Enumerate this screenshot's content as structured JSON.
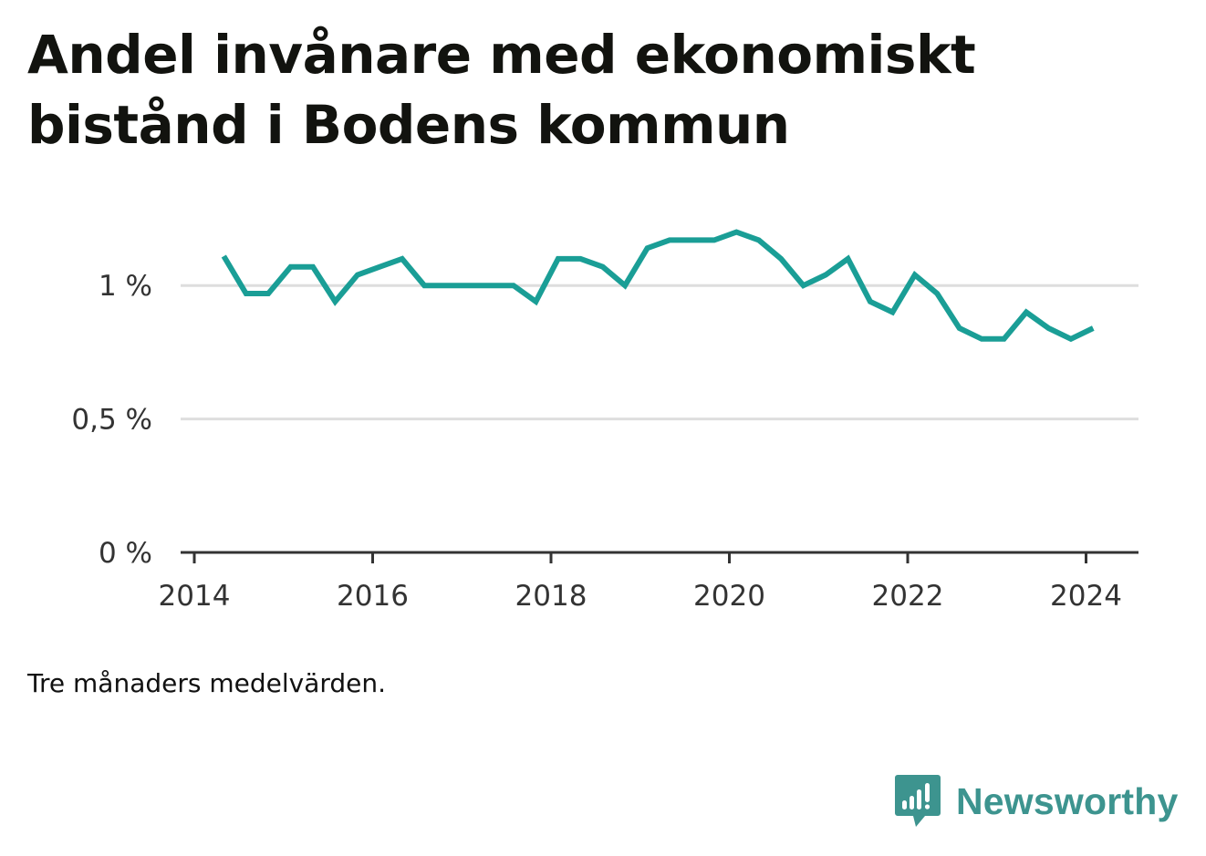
{
  "title": "Andel invånare med ekonomiskt bistånd i Bodens kommun",
  "note": "Tre månaders medelvärden.",
  "brand": {
    "name": "Newsworthy",
    "icon": "bar-chart-speech-bubble-icon",
    "color": "#3d948f"
  },
  "chart_data": {
    "type": "line",
    "title": "Andel invånare med ekonomiskt bistånd i Bodens kommun",
    "xlabel": "",
    "ylabel": "",
    "x_ticks": [
      "2014",
      "2016",
      "2018",
      "2020",
      "2022",
      "2024"
    ],
    "y_ticks": [
      "0 %",
      "0,5 %",
      "1 %"
    ],
    "xlim": [
      2014.0,
      2024.6
    ],
    "ylim": [
      0,
      1.25
    ],
    "grid": true,
    "legend": "none",
    "series": [
      {
        "color": "#1a9e96",
        "points": [
          [
            2014.33,
            1.11
          ],
          [
            2014.58,
            0.97
          ],
          [
            2014.83,
            0.97
          ],
          [
            2015.08,
            1.07
          ],
          [
            2015.33,
            1.07
          ],
          [
            2015.58,
            0.94
          ],
          [
            2015.83,
            1.04
          ],
          [
            2016.08,
            1.07
          ],
          [
            2016.33,
            1.1
          ],
          [
            2016.58,
            1.0
          ],
          [
            2016.83,
            1.0
          ],
          [
            2017.08,
            1.0
          ],
          [
            2017.33,
            1.0
          ],
          [
            2017.58,
            1.0
          ],
          [
            2017.83,
            0.94
          ],
          [
            2018.08,
            1.1
          ],
          [
            2018.33,
            1.1
          ],
          [
            2018.58,
            1.07
          ],
          [
            2018.83,
            1.0
          ],
          [
            2019.08,
            1.14
          ],
          [
            2019.33,
            1.17
          ],
          [
            2019.58,
            1.17
          ],
          [
            2019.83,
            1.17
          ],
          [
            2020.08,
            1.2
          ],
          [
            2020.33,
            1.17
          ],
          [
            2020.58,
            1.1
          ],
          [
            2020.83,
            1.0
          ],
          [
            2021.08,
            1.04
          ],
          [
            2021.33,
            1.1
          ],
          [
            2021.58,
            0.94
          ],
          [
            2021.83,
            0.9
          ],
          [
            2022.08,
            1.04
          ],
          [
            2022.33,
            0.97
          ],
          [
            2022.58,
            0.84
          ],
          [
            2022.83,
            0.8
          ],
          [
            2023.08,
            0.8
          ],
          [
            2023.33,
            0.9
          ],
          [
            2023.58,
            0.84
          ],
          [
            2023.83,
            0.8
          ],
          [
            2024.08,
            0.84
          ]
        ]
      }
    ]
  }
}
